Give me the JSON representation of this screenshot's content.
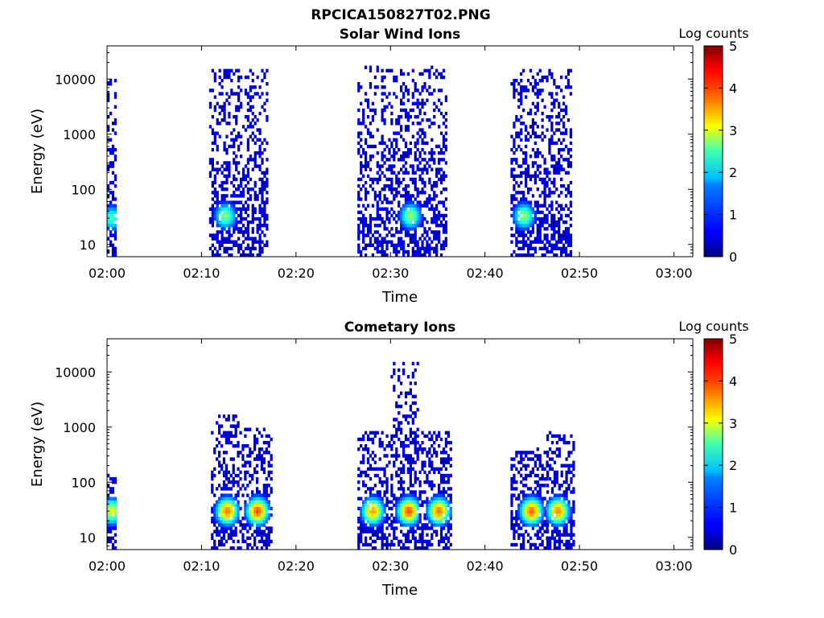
{
  "figure_title": "RPCICA150827T02.PNG",
  "chart_data": [
    {
      "type": "heatmap",
      "title": "Solar Wind Ions",
      "xlabel": "Time",
      "ylabel": "Energy (eV)",
      "y_scale": "log",
      "ylim": [
        6,
        40000
      ],
      "x_tick_labels": [
        "02:00",
        "02:10",
        "02:20",
        "02:30",
        "02:40",
        "02:50",
        "03:00"
      ],
      "x_tick_minutes": [
        0,
        10,
        20,
        30,
        40,
        50,
        60
      ],
      "xlim_minutes": [
        0,
        62
      ],
      "y_tick_labels": [
        "10",
        "100",
        "1000",
        "10000"
      ],
      "y_tick_values": [
        10,
        100,
        1000,
        10000
      ],
      "colorbar": {
        "label": "Log counts",
        "range": [
          0,
          5
        ],
        "ticks": [
          "0",
          "1",
          "2",
          "3",
          "4",
          "5"
        ]
      },
      "bursts": [
        {
          "t_start": 0.0,
          "t_end": 1.0,
          "emax": 12000,
          "peak_e": 30,
          "peak_t": 0.4,
          "peak_level": 2.2
        },
        {
          "t_start": 10.8,
          "t_end": 17.0,
          "emax": 15000,
          "peak_e": 33,
          "peak_t": 12.4,
          "peak_level": 2.5
        },
        {
          "t_start": 26.5,
          "t_end": 36.0,
          "emax": 18000,
          "peak_e": 33,
          "peak_t": 32.0,
          "peak_level": 2.6
        },
        {
          "t_start": 42.7,
          "t_end": 49.0,
          "emax": 16000,
          "peak_e": 33,
          "peak_t": 44.0,
          "peak_level": 2.6
        }
      ]
    },
    {
      "type": "heatmap",
      "title": "Cometary Ions",
      "xlabel": "Time",
      "ylabel": "Energy (eV)",
      "y_scale": "log",
      "ylim": [
        6,
        40000
      ],
      "x_tick_labels": [
        "02:00",
        "02:10",
        "02:20",
        "02:30",
        "02:40",
        "02:50",
        "03:00"
      ],
      "x_tick_minutes": [
        0,
        10,
        20,
        30,
        40,
        50,
        60
      ],
      "xlim_minutes": [
        0,
        62
      ],
      "y_tick_labels": [
        "10",
        "100",
        "1000",
        "10000"
      ],
      "y_tick_values": [
        10,
        100,
        1000,
        10000
      ],
      "colorbar": {
        "label": "Log counts",
        "range": [
          0,
          5
        ],
        "ticks": [
          "0",
          "1",
          "2",
          "3",
          "4",
          "5"
        ]
      },
      "bursts": [
        {
          "t_start": 0.0,
          "t_end": 1.0,
          "emax": 150,
          "peak_e": 30,
          "peak_t": 0.4,
          "peak_level": 3.0
        },
        {
          "t_start": 11.0,
          "t_end": 14.0,
          "emax": 1800,
          "peak_e": 30,
          "peak_t": 12.6,
          "peak_level": 3.8
        },
        {
          "t_start": 14.0,
          "t_end": 17.5,
          "emax": 1000,
          "peak_e": 30,
          "peak_t": 15.8,
          "peak_level": 4.0
        },
        {
          "t_start": 26.5,
          "t_end": 30.0,
          "emax": 900,
          "peak_e": 30,
          "peak_t": 28.0,
          "peak_level": 3.6
        },
        {
          "t_start": 30.0,
          "t_end": 33.0,
          "emax": 16000,
          "peak_e": 30,
          "peak_t": 31.8,
          "peak_level": 4.0
        },
        {
          "t_start": 33.0,
          "t_end": 36.5,
          "emax": 800,
          "peak_e": 30,
          "peak_t": 35.0,
          "peak_level": 3.8
        },
        {
          "t_start": 42.7,
          "t_end": 46.5,
          "emax": 400,
          "peak_e": 30,
          "peak_t": 44.8,
          "peak_level": 3.9
        },
        {
          "t_start": 46.5,
          "t_end": 49.5,
          "emax": 800,
          "peak_e": 30,
          "peak_t": 47.6,
          "peak_level": 3.7
        }
      ]
    }
  ]
}
